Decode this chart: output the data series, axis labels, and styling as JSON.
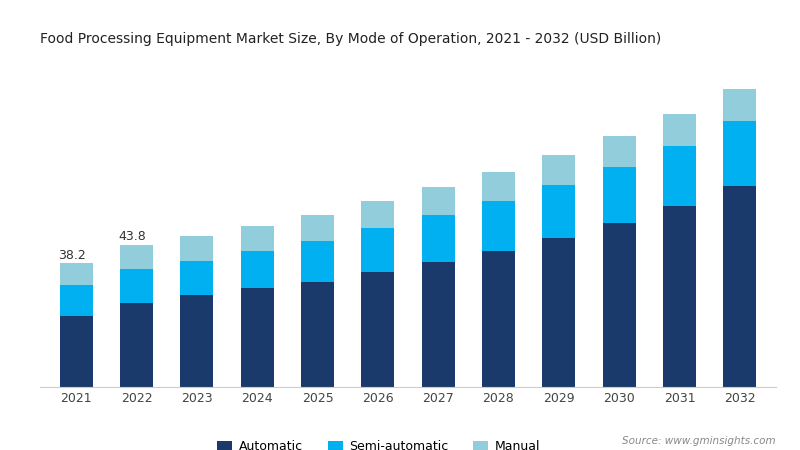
{
  "title": "Food Processing Equipment Market Size, By Mode of Operation, 2021 - 2032 (USD Billion)",
  "years": [
    2021,
    2022,
    2023,
    2024,
    2025,
    2026,
    2027,
    2028,
    2029,
    2030,
    2031,
    2032
  ],
  "automatic": [
    22.0,
    26.0,
    28.5,
    30.5,
    32.5,
    35.5,
    38.5,
    42.0,
    46.0,
    50.5,
    56.0,
    62.0
  ],
  "semi_automatic": [
    9.5,
    10.5,
    10.5,
    11.5,
    12.5,
    13.5,
    14.5,
    15.5,
    16.5,
    17.5,
    18.5,
    20.0
  ],
  "manual": [
    6.7,
    7.3,
    7.5,
    7.8,
    8.0,
    8.5,
    8.8,
    9.0,
    9.2,
    9.5,
    9.8,
    10.0
  ],
  "label_2021": "38.2",
  "label_2022": "43.8",
  "color_automatic": "#1a3a6b",
  "color_semi_automatic": "#00b0f0",
  "color_manual": "#92cddc",
  "background_color": "#FFFFFF",
  "source_text": "Source: www.gminsights.com",
  "legend_labels": [
    "Automatic",
    "Semi-automatic",
    "Manual"
  ],
  "bar_width": 0.55,
  "ylim": [
    0,
    100
  ]
}
